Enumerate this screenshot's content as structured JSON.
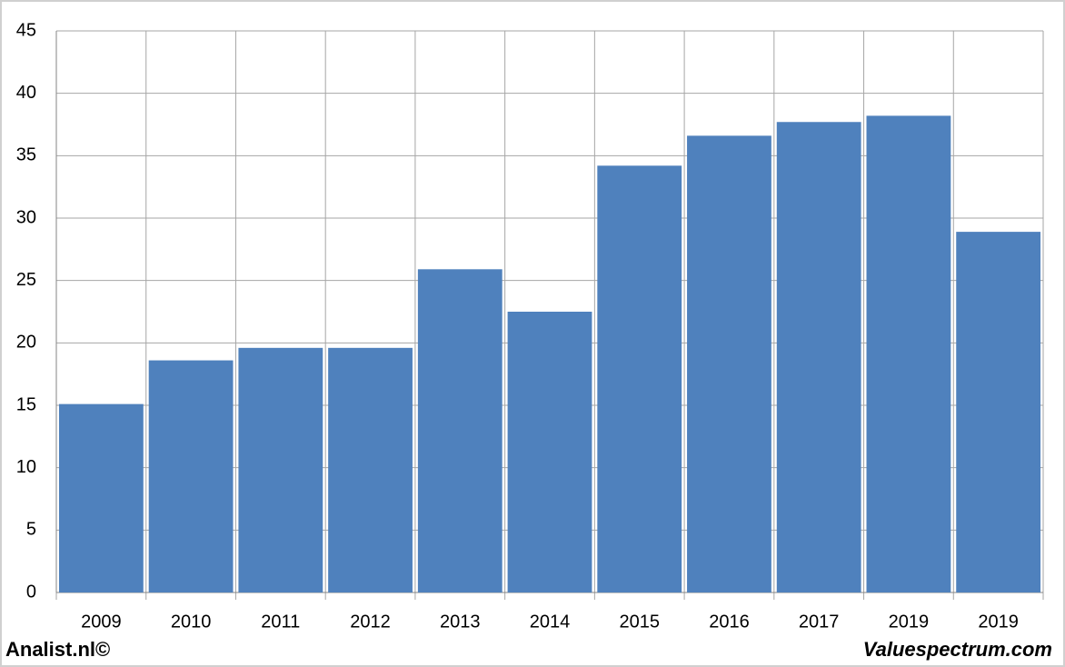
{
  "chart_data": {
    "type": "bar",
    "categories": [
      "2009",
      "2010",
      "2011",
      "2012",
      "2013",
      "2014",
      "2015",
      "2016",
      "2017",
      "2019",
      "2019"
    ],
    "values": [
      15.1,
      18.6,
      19.6,
      19.6,
      25.9,
      22.5,
      34.2,
      36.6,
      37.7,
      38.2,
      28.9
    ],
    "color": "#4f81bd",
    "ylim": [
      0,
      45
    ],
    "yticks": [
      0,
      5,
      10,
      15,
      20,
      25,
      30,
      35,
      40,
      45
    ],
    "grid": true
  },
  "credits": {
    "left": "Analist.nl©",
    "right": "Valuespectrum.com"
  }
}
